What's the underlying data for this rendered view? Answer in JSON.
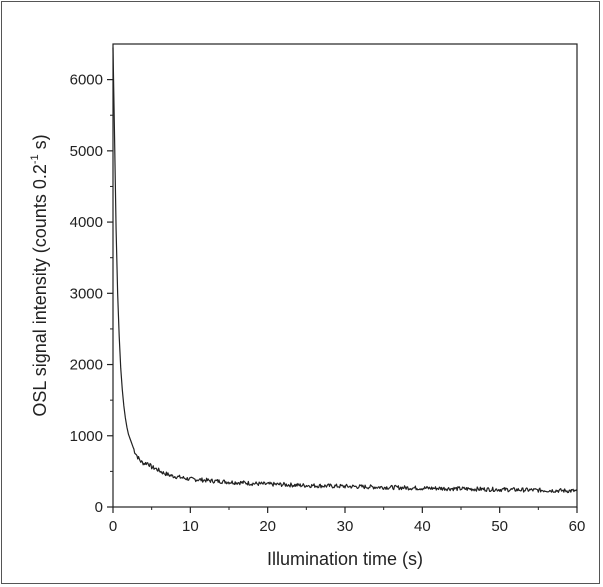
{
  "chart_data": {
    "type": "line",
    "title": "",
    "xlabel": "Illumination time (s)",
    "ylabel": {
      "text": "OSL signal intensity (counts 0.2",
      "superscript": "-1",
      "suffix": " s)"
    },
    "xlim": [
      0,
      60
    ],
    "ylim": [
      0,
      6500
    ],
    "xticks": [
      0,
      10,
      20,
      30,
      40,
      50,
      60
    ],
    "yticks": [
      0,
      1000,
      2000,
      3000,
      4000,
      5000,
      6000
    ],
    "xtick_labels": [
      "0",
      "10",
      "20",
      "30",
      "40",
      "50",
      "60"
    ],
    "ytick_labels": [
      "0",
      "1000",
      "2000",
      "3000",
      "4000",
      "5000",
      "6000"
    ],
    "grid": false,
    "series": [
      {
        "color": "#222222",
        "points": [
          [
            0.0,
            6450
          ],
          [
            0.2,
            5200
          ],
          [
            0.4,
            3900
          ],
          [
            0.6,
            3000
          ],
          [
            0.8,
            2400
          ],
          [
            1.0,
            1950
          ],
          [
            1.2,
            1650
          ],
          [
            1.4,
            1420
          ],
          [
            1.6,
            1250
          ],
          [
            1.8,
            1120
          ],
          [
            2.0,
            1020
          ],
          [
            2.4,
            900
          ],
          [
            2.8,
            780
          ],
          [
            3.2,
            700
          ],
          [
            3.6,
            640
          ],
          [
            4.0,
            610
          ],
          [
            4.5,
            620
          ],
          [
            5.0,
            560
          ],
          [
            5.5,
            540
          ],
          [
            6.0,
            510
          ],
          [
            6.5,
            480
          ],
          [
            7.0,
            460
          ],
          [
            7.5,
            440
          ],
          [
            8.0,
            430
          ],
          [
            9.0,
            410
          ],
          [
            10.0,
            390
          ],
          [
            11.0,
            385
          ],
          [
            12.0,
            375
          ],
          [
            13.0,
            365
          ],
          [
            14.0,
            360
          ],
          [
            15.0,
            350
          ],
          [
            16.0,
            345
          ],
          [
            17.0,
            340
          ],
          [
            18.0,
            330
          ],
          [
            19.0,
            325
          ],
          [
            20.0,
            320
          ],
          [
            22.0,
            315
          ],
          [
            24.0,
            305
          ],
          [
            26.0,
            300
          ],
          [
            28.0,
            295
          ],
          [
            30.0,
            290
          ],
          [
            32.0,
            285
          ],
          [
            34.0,
            280
          ],
          [
            36.0,
            275
          ],
          [
            38.0,
            270
          ],
          [
            40.0,
            265
          ],
          [
            42.0,
            262
          ],
          [
            44.0,
            258
          ],
          [
            46.0,
            254
          ],
          [
            48.0,
            250
          ],
          [
            50.0,
            246
          ],
          [
            52.0,
            242
          ],
          [
            54.0,
            238
          ],
          [
            56.0,
            234
          ],
          [
            58.0,
            230
          ],
          [
            60.0,
            225
          ]
        ]
      }
    ]
  }
}
